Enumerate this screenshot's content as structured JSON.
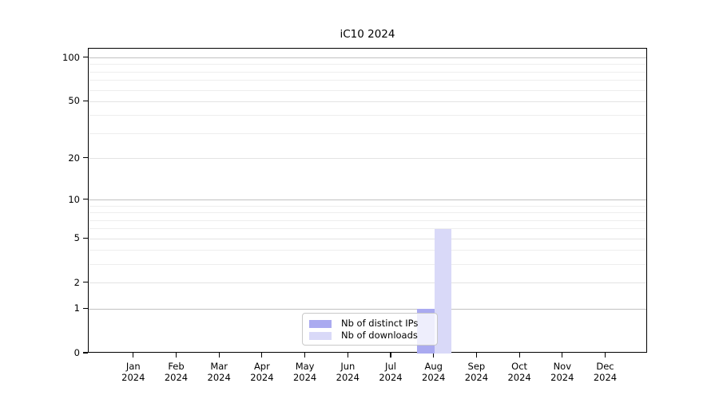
{
  "chart_data": {
    "type": "bar",
    "title": "iC10 2024",
    "categories": [
      "Jan",
      "Feb",
      "Mar",
      "Apr",
      "May",
      "Jun",
      "Jul",
      "Aug",
      "Sep",
      "Oct",
      "Nov",
      "Dec"
    ],
    "category_year": "2024",
    "series": [
      {
        "name": "Nb of distinct IPs",
        "color": "#aaaaf0",
        "values": [
          0,
          0,
          0,
          0,
          0,
          0,
          0,
          1,
          0,
          0,
          0,
          0
        ]
      },
      {
        "name": "Nb of downloads",
        "color": "#d9d9f8",
        "values": [
          0,
          0,
          0,
          0,
          0,
          0,
          0,
          6,
          0,
          0,
          0,
          0
        ]
      }
    ],
    "y_axis": {
      "scale": "log10(value+1)",
      "ylim": [
        0,
        100
      ],
      "tick_values": [
        0,
        1,
        2,
        5,
        10,
        20,
        50,
        100
      ],
      "tick_labels": [
        "0",
        "1",
        "2",
        "5",
        "10",
        "20",
        "50",
        "100"
      ],
      "gridline_values": [
        1,
        2,
        3,
        4,
        5,
        6,
        7,
        8,
        9,
        10,
        20,
        30,
        40,
        50,
        60,
        70,
        80,
        90,
        100
      ],
      "emphasized_gridlines": [
        1,
        10,
        100
      ]
    },
    "legend": {
      "position": "bottom-center"
    },
    "grid": "on"
  },
  "colors": {
    "grid_emphasis": "#c2c2c2",
    "grid_labeled": "#e3e3e3",
    "grid_minor": "#eeeeee",
    "axis": "#000000",
    "background": "#ffffff"
  }
}
